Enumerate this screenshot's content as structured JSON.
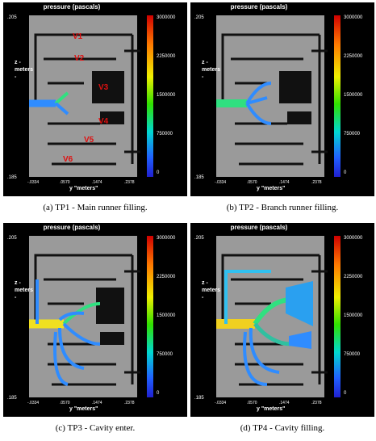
{
  "panels": [
    {
      "title": "pressure (pascals)",
      "caption": "(a) TP1 - Main runner filling.",
      "fill": 1
    },
    {
      "title": "pressure (pascals)",
      "caption": "(b) TP2 - Branch runner filling.",
      "fill": 2
    },
    {
      "title": "pressure (pascals)",
      "caption": "(c) TP3 - Cavity enter.",
      "fill": 3
    },
    {
      "title": "pressure (pascals)",
      "caption": "(d) TP4 - Cavity filling.",
      "fill": 4
    }
  ],
  "colorbar": {
    "ticks": [
      "3000000",
      "2250000",
      "1500000",
      "750000",
      "0"
    ]
  },
  "axes": {
    "z_label": "z - meters -",
    "z_ticks": [
      ".205",
      ".185"
    ],
    "y_label": "y \"meters\"",
    "y_ticks": [
      "-.0334",
      ".0570",
      ".1474",
      ".2378"
    ]
  },
  "valve_labels": [
    "V1",
    "V2",
    "V3",
    "V4",
    "V5",
    "V6"
  ],
  "colors": {
    "background": "#000000",
    "mold": "#9a9a9a",
    "melt_low": "#2f8cff",
    "melt_mid": "#30e080",
    "melt_high": "#f0e020"
  }
}
